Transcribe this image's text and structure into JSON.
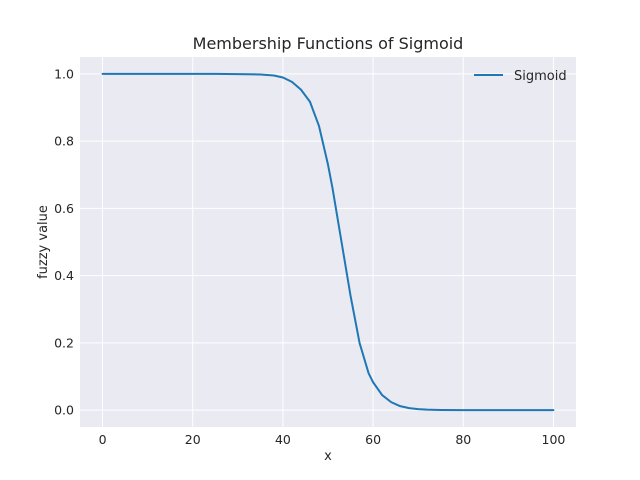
{
  "chart_data": {
    "type": "line",
    "title": "Membership Functions of Sigmoid",
    "xlabel": "x",
    "ylabel": "fuzzy value",
    "xlim": [
      -5,
      105
    ],
    "ylim": [
      -0.05,
      1.05
    ],
    "xticks": [
      0,
      20,
      40,
      60,
      80,
      100
    ],
    "yticks": [
      0.0,
      0.2,
      0.4,
      0.6,
      0.8,
      1.0
    ],
    "xtick_labels": [
      "0",
      "20",
      "40",
      "60",
      "80",
      "100"
    ],
    "ytick_labels": [
      "0.0",
      "0.2",
      "0.4",
      "0.6",
      "0.8",
      "1.0"
    ],
    "grid": true,
    "legend_position": "top-right",
    "background_color": "#eaeaf2",
    "series": [
      {
        "name": "Sigmoid",
        "color": "#1f77b4",
        "x": [
          0,
          5,
          10,
          15,
          20,
          25,
          30,
          35,
          38,
          40,
          42,
          44,
          46,
          48,
          50,
          51,
          52,
          53,
          54,
          55,
          56,
          57,
          58,
          59,
          60,
          62,
          64,
          66,
          68,
          70,
          72,
          75,
          80,
          85,
          90,
          95,
          100
        ],
        "values": [
          1.0,
          1.0,
          1.0,
          1.0,
          1.0,
          1.0,
          0.999,
          0.998,
          0.995,
          0.989,
          0.976,
          0.953,
          0.917,
          0.845,
          0.73,
          0.66,
          0.58,
          0.5,
          0.42,
          0.34,
          0.27,
          0.2,
          0.155,
          0.11,
          0.083,
          0.045,
          0.024,
          0.012,
          0.006,
          0.003,
          0.0015,
          0.0005,
          0.0001,
          0.0,
          0.0,
          0.0,
          0.0
        ]
      }
    ]
  }
}
